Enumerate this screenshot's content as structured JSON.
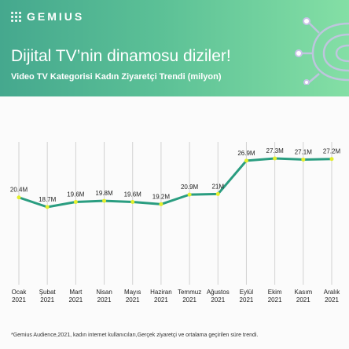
{
  "header": {
    "brand": "GEMIUS",
    "headline": "Dijital TV’nin dinamosu diziler!",
    "subtitle": "Video TV Kategorisi Kadın Ziyaretçi Trendi (milyon)",
    "background_colors": [
      "#45a88e",
      "#84dfa5"
    ]
  },
  "chart_data": {
    "type": "line",
    "title": "Video TV Kategorisi Kadın Ziyaretçi Trendi (milyon)",
    "categories": [
      [
        "Ocak",
        "2021"
      ],
      [
        "Şubat",
        "2021"
      ],
      [
        "Mart",
        "2021"
      ],
      [
        "Nisan",
        "2021"
      ],
      [
        "Mayıs",
        "2021"
      ],
      [
        "Haziran",
        "2021"
      ],
      [
        "Temmuz",
        "2021"
      ],
      [
        "Ağustos",
        "2021"
      ],
      [
        "Eylül",
        "2021"
      ],
      [
        "Ekim",
        "2021"
      ],
      [
        "Kasım",
        "2021"
      ],
      [
        "Aralık",
        "2021"
      ]
    ],
    "values": [
      20.4,
      18.7,
      19.6,
      19.8,
      19.6,
      19.2,
      20.9,
      21,
      26.9,
      27.3,
      27.1,
      27.2
    ],
    "data_labels": [
      "20.4M",
      "18.7M",
      "19.6M",
      "19.8M",
      "19.6M",
      "19.2M",
      "20.9M",
      "21M",
      "26.9M",
      "27.3M",
      "27.1M",
      "27.2M"
    ],
    "unit": "M",
    "ylim": [
      0,
      30
    ],
    "grid": "vertical",
    "legend": "none",
    "line_color": "#2a9d80",
    "marker_color": "#e3ef2c",
    "grid_color": "#d2d2d2"
  },
  "footnote": "*Gemius Audience,2021, kadın internet kullanıcıları,Gerçek ziyaretçi ve ortalama geçirilen süre trendi."
}
